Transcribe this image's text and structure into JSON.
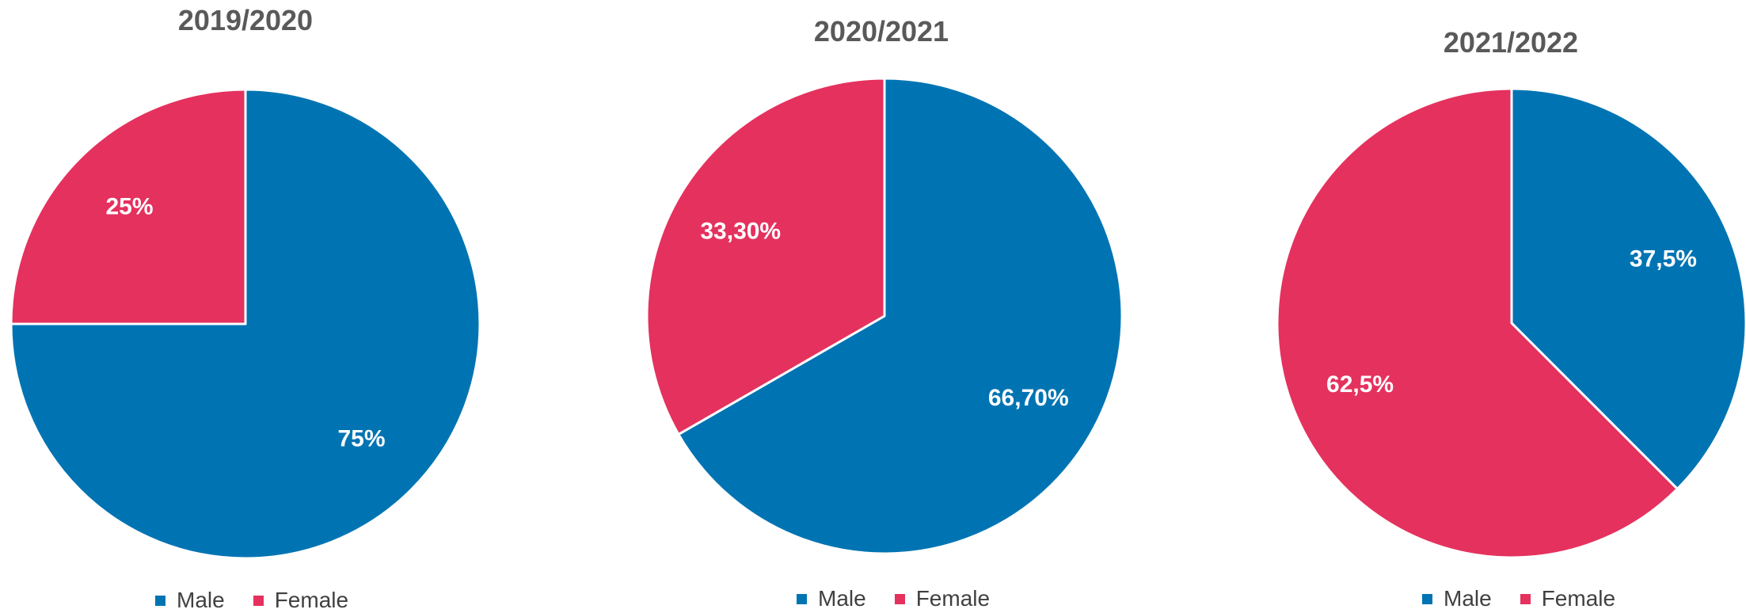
{
  "colors": {
    "male": "#0074B3",
    "female": "#E5315E",
    "title": "#595959",
    "legend_text": "#404040"
  },
  "chart_data": [
    {
      "type": "pie",
      "title": "2019/2020",
      "categories": [
        "Male",
        "Female"
      ],
      "values": [
        75,
        25
      ],
      "labels": [
        "75%",
        "25%"
      ],
      "legend": [
        "Male",
        "Female"
      ],
      "legend_placement": "bottom",
      "start_angle_deg": 0,
      "direction": "clockwise"
    },
    {
      "type": "pie",
      "title": "2020/2021",
      "categories": [
        "Male",
        "Female"
      ],
      "values": [
        66.7,
        33.3
      ],
      "labels": [
        "66,70%",
        "33,30%"
      ],
      "legend": [
        "Male",
        "Female"
      ],
      "legend_placement": "bottom",
      "start_angle_deg": 0,
      "direction": "clockwise"
    },
    {
      "type": "pie",
      "title": "2021/2022",
      "categories": [
        "Male",
        "Female"
      ],
      "values": [
        37.5,
        62.5
      ],
      "labels": [
        "37,5%",
        "62,5%"
      ],
      "legend": [
        "Male",
        "Female"
      ],
      "legend_placement": "bottom",
      "start_angle_deg": 0,
      "direction": "clockwise"
    }
  ]
}
